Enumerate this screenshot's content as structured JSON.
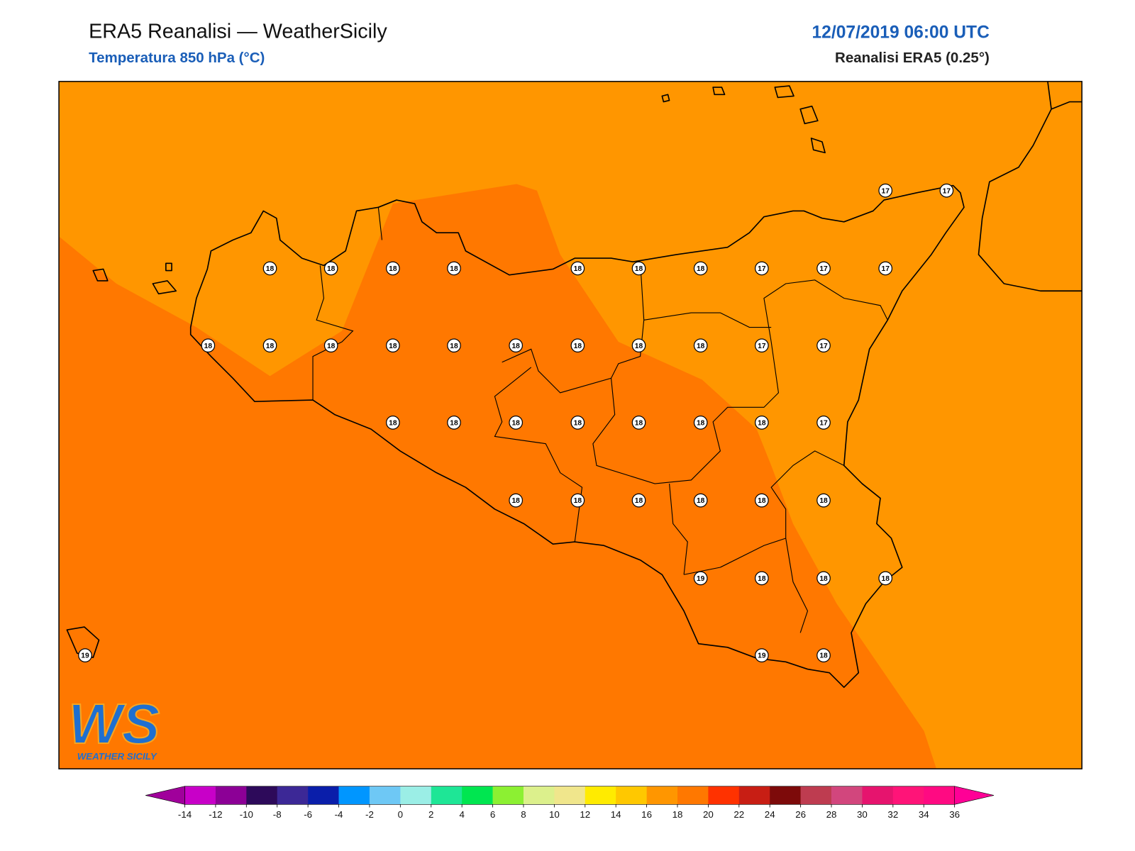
{
  "header": {
    "title": "ERA5 Reanalisi — WeatherSicily",
    "subtitle": "Temperatura 850 hPa (°C)",
    "datetime": "12/07/2019 06:00 UTC",
    "source": "Reanalisi ERA5 (0.25°)"
  },
  "stations": [
    17,
    17,
    18,
    18,
    18,
    18,
    18,
    18,
    18,
    17,
    17,
    17,
    18,
    18,
    18,
    18,
    18,
    18,
    18,
    18,
    18,
    17,
    17,
    18,
    18,
    18,
    18,
    18,
    18,
    18,
    17,
    18,
    18,
    18,
    18,
    18,
    18,
    19,
    18,
    18,
    18,
    19,
    19,
    18
  ],
  "colorbar": {
    "ticks": [
      -14,
      -12,
      -10,
      -8,
      -6,
      -4,
      -2,
      0,
      2,
      4,
      6,
      8,
      10,
      12,
      14,
      16,
      18,
      20,
      22,
      24,
      26,
      28,
      30,
      32,
      34,
      36
    ],
    "colors": [
      "#c800c8",
      "#8c0096",
      "#2d0a5a",
      "#3c2896",
      "#0a1eaa",
      "#0096ff",
      "#6ec8f5",
      "#9beee6",
      "#1ee696",
      "#00e650",
      "#8cf032",
      "#dcf08c",
      "#f0e68c",
      "#ffeb00",
      "#ffc800",
      "#ff9600",
      "#ff7800",
      "#ff3200",
      "#c81e14",
      "#7d0a0a",
      "#be3c50",
      "#d2467d",
      "#e6146e",
      "#ff1478",
      "#ff0a82"
    ],
    "under_color": "#a0009b",
    "over_color": "#ff0096"
  },
  "logo": {
    "mark": "WS",
    "name": "WEATHER SICILY"
  }
}
